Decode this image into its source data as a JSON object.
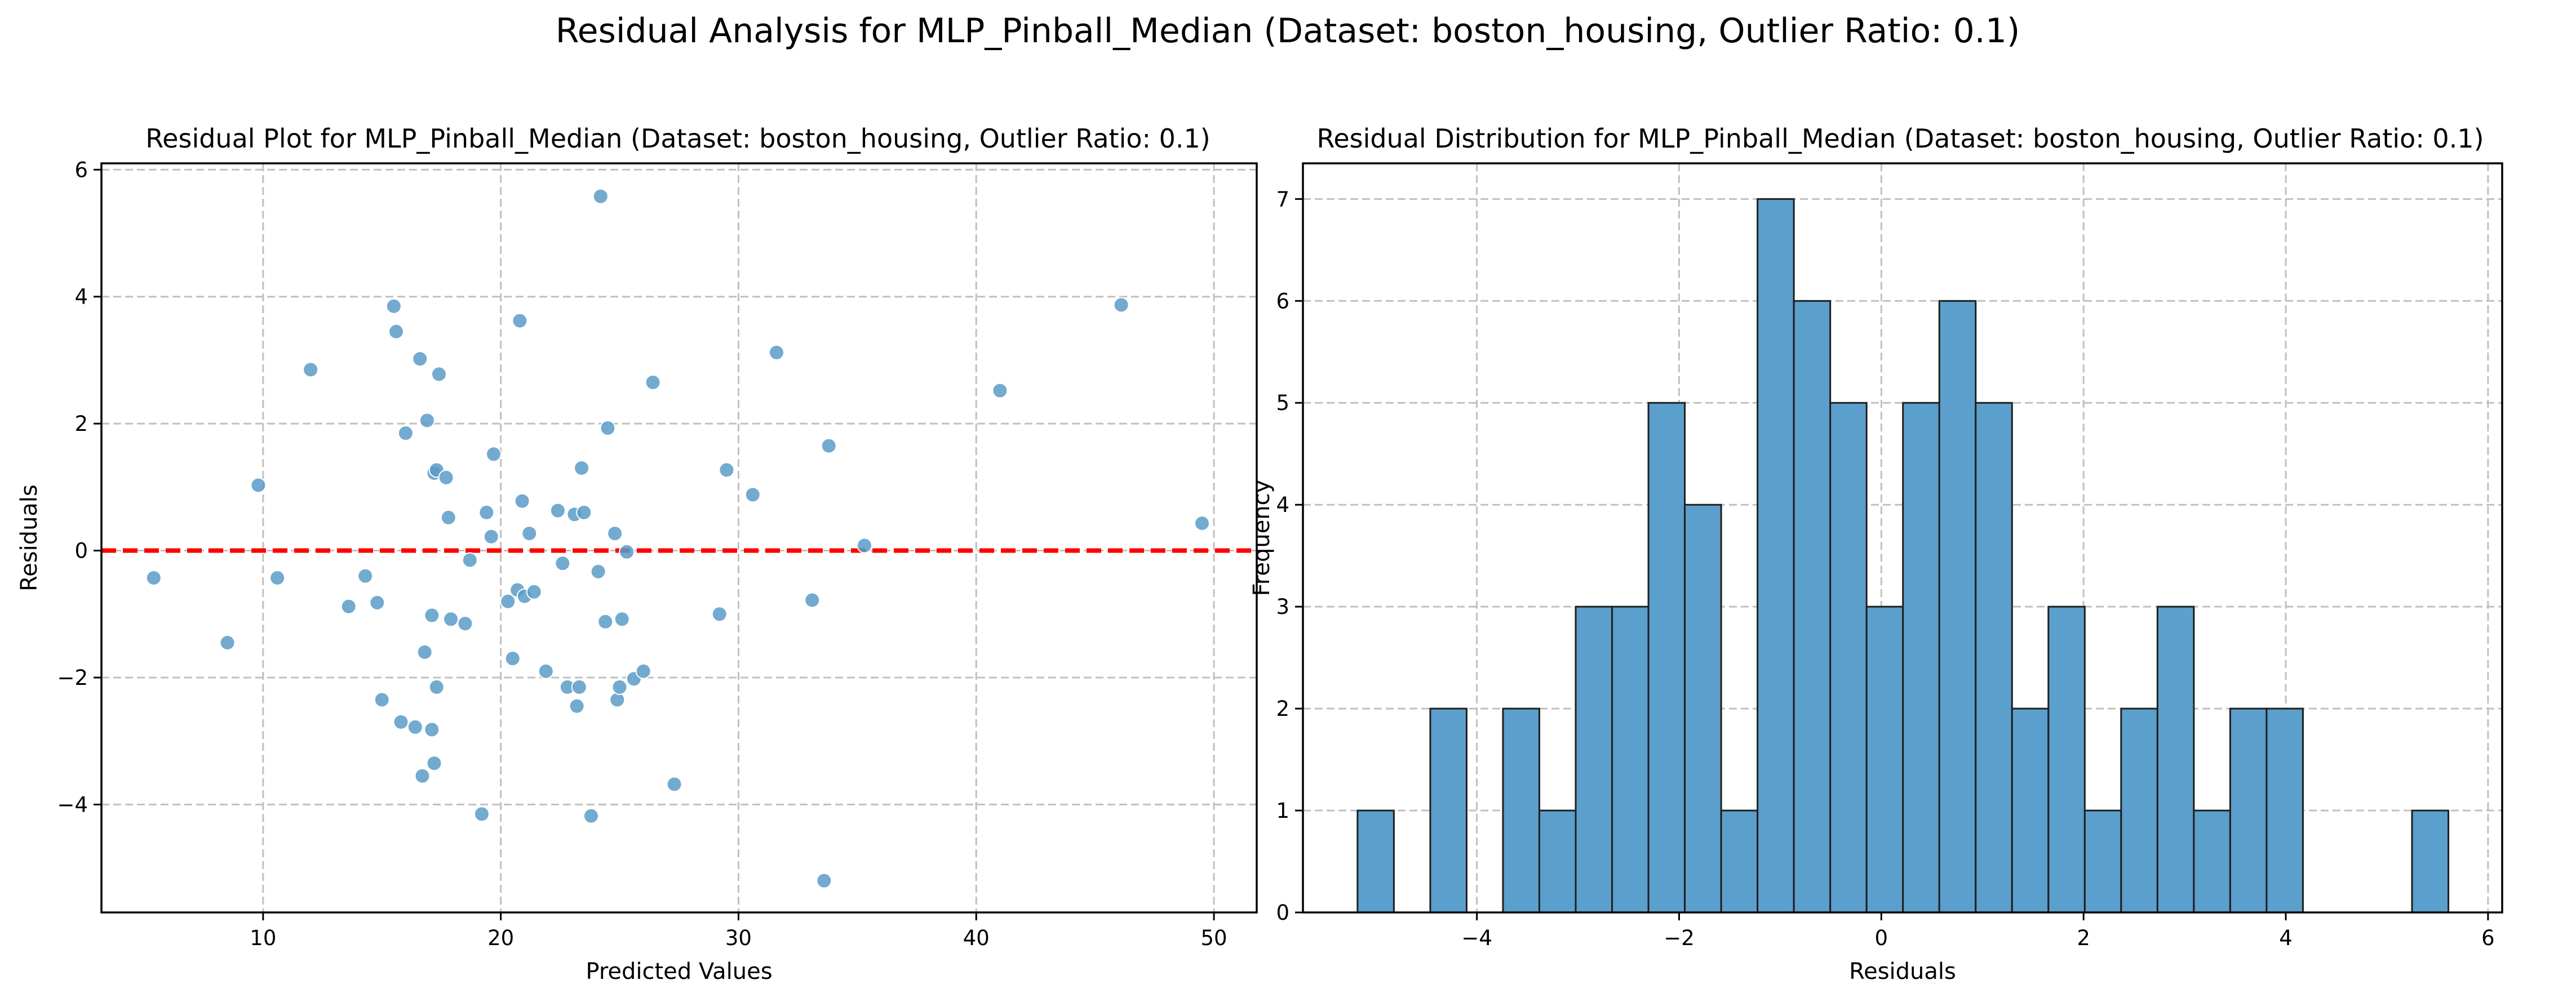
{
  "figure": {
    "suptitle": "Residual Analysis for MLP_Pinball_Median (Dataset: boston_housing, Outlier Ratio: 0.1)"
  },
  "chart_data": [
    {
      "type": "scatter",
      "title": "Residual Plot for MLP_Pinball_Median (Dataset: boston_housing, Outlier Ratio: 0.1)",
      "xlabel": "Predicted Values",
      "ylabel": "Residuals",
      "xlim": [
        3.2,
        51.8
      ],
      "ylim": [
        -5.7,
        6.1
      ],
      "xticks": [
        10,
        20,
        30,
        40,
        50
      ],
      "yticks": [
        -4,
        -2,
        0,
        2,
        4,
        6
      ],
      "xtick_labels": [
        "10",
        "20",
        "30",
        "40",
        "50"
      ],
      "ytick_labels": [
        "−4",
        "−2",
        "0",
        "2",
        "4",
        "6"
      ],
      "grid": true,
      "reference_line": {
        "y": 0,
        "color": "#ff0000",
        "style": "dashed"
      },
      "color": "#5b9bc8",
      "points": [
        [
          5.4,
          -0.43
        ],
        [
          8.5,
          -1.45
        ],
        [
          9.8,
          1.03
        ],
        [
          10.6,
          -0.43
        ],
        [
          12.0,
          2.85
        ],
        [
          13.6,
          -0.88
        ],
        [
          14.3,
          -0.4
        ],
        [
          14.8,
          -0.82
        ],
        [
          15.0,
          -2.35
        ],
        [
          15.5,
          3.85
        ],
        [
          15.6,
          3.45
        ],
        [
          15.8,
          -2.7
        ],
        [
          16.0,
          1.85
        ],
        [
          16.4,
          -2.78
        ],
        [
          16.6,
          3.02
        ],
        [
          16.7,
          -3.55
        ],
        [
          16.8,
          -1.6
        ],
        [
          16.9,
          2.05
        ],
        [
          17.1,
          -2.82
        ],
        [
          17.1,
          -1.02
        ],
        [
          17.2,
          1.22
        ],
        [
          17.2,
          -3.35
        ],
        [
          17.3,
          1.27
        ],
        [
          17.3,
          -2.15
        ],
        [
          17.4,
          2.78
        ],
        [
          17.7,
          1.15
        ],
        [
          17.8,
          0.52
        ],
        [
          17.9,
          -1.08
        ],
        [
          18.5,
          -1.15
        ],
        [
          18.7,
          -0.15
        ],
        [
          19.2,
          -4.15
        ],
        [
          19.4,
          0.6
        ],
        [
          19.6,
          0.22
        ],
        [
          19.7,
          1.52
        ],
        [
          20.3,
          -0.8
        ],
        [
          20.5,
          -1.7
        ],
        [
          20.7,
          -0.62
        ],
        [
          20.8,
          3.62
        ],
        [
          20.9,
          0.78
        ],
        [
          21.0,
          -0.72
        ],
        [
          21.2,
          0.27
        ],
        [
          21.4,
          -0.65
        ],
        [
          21.9,
          -1.9
        ],
        [
          22.4,
          0.63
        ],
        [
          22.6,
          -0.2
        ],
        [
          22.8,
          -2.15
        ],
        [
          23.1,
          0.57
        ],
        [
          23.2,
          -2.45
        ],
        [
          23.3,
          -2.15
        ],
        [
          23.4,
          1.3
        ],
        [
          23.5,
          0.6
        ],
        [
          23.8,
          -4.18
        ],
        [
          24.1,
          -0.33
        ],
        [
          24.2,
          5.58
        ],
        [
          24.4,
          -1.12
        ],
        [
          24.5,
          1.93
        ],
        [
          24.8,
          0.27
        ],
        [
          24.9,
          -2.35
        ],
        [
          25.0,
          -2.15
        ],
        [
          25.1,
          -1.08
        ],
        [
          25.3,
          -0.02
        ],
        [
          25.6,
          -2.02
        ],
        [
          26.0,
          -1.9
        ],
        [
          26.4,
          2.65
        ],
        [
          27.3,
          -3.68
        ],
        [
          29.2,
          -1.0
        ],
        [
          29.5,
          1.27
        ],
        [
          30.6,
          0.88
        ],
        [
          31.6,
          3.12
        ],
        [
          33.1,
          -0.78
        ],
        [
          33.6,
          -5.2
        ],
        [
          33.8,
          1.65
        ],
        [
          35.3,
          0.08
        ],
        [
          41.0,
          2.52
        ],
        [
          46.1,
          3.87
        ],
        [
          49.5,
          0.43
        ]
      ]
    },
    {
      "type": "bar",
      "subtype": "histogram",
      "title": "Residual Distribution for MLP_Pinball_Median (Dataset: boston_housing, Outlier Ratio: 0.1)",
      "xlabel": "Residuals",
      "ylabel": "Frequency",
      "xlim": [
        -5.72,
        6.14
      ],
      "ylim": [
        0,
        7.35
      ],
      "xticks": [
        -4,
        -2,
        0,
        2,
        4,
        6
      ],
      "yticks": [
        0,
        1,
        2,
        3,
        4,
        5,
        6,
        7
      ],
      "xtick_labels": [
        "−4",
        "−2",
        "0",
        "2",
        "4",
        "6"
      ],
      "ytick_labels": [
        "0",
        "1",
        "2",
        "3",
        "4",
        "5",
        "6",
        "7"
      ],
      "grid": true,
      "color": "#5b9fcc",
      "bin_start": -5.18,
      "bin_width": 0.3596,
      "counts": [
        1,
        0,
        2,
        0,
        2,
        1,
        3,
        3,
        5,
        4,
        1,
        7,
        6,
        5,
        3,
        5,
        6,
        5,
        2,
        3,
        1,
        2,
        3,
        1,
        2,
        2,
        0,
        0,
        0,
        1
      ]
    }
  ]
}
